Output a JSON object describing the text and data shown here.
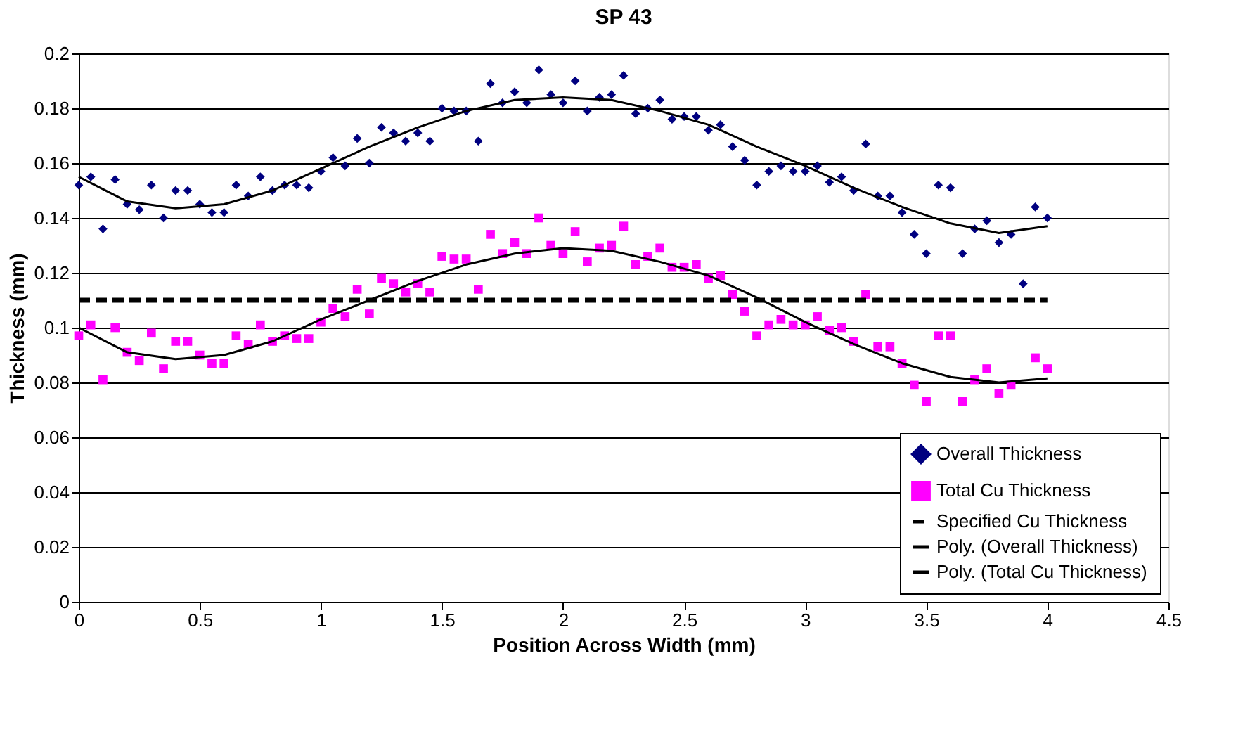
{
  "chart_data": {
    "type": "scatter",
    "title": "SP 43",
    "xlabel": "Position Across Width (mm)",
    "ylabel": "Thickness (mm)",
    "x": [
      0,
      0.05,
      0.1,
      0.15,
      0.2,
      0.25,
      0.3,
      0.35,
      0.4,
      0.45,
      0.5,
      0.55,
      0.6,
      0.65,
      0.7,
      0.75,
      0.8,
      0.85,
      0.9,
      0.95,
      1.0,
      1.05,
      1.1,
      1.15,
      1.2,
      1.25,
      1.3,
      1.35,
      1.4,
      1.45,
      1.5,
      1.55,
      1.6,
      1.65,
      1.7,
      1.75,
      1.8,
      1.85,
      1.9,
      1.95,
      2.0,
      2.05,
      2.1,
      2.15,
      2.2,
      2.25,
      2.3,
      2.35,
      2.4,
      2.45,
      2.5,
      2.55,
      2.6,
      2.65,
      2.7,
      2.75,
      2.8,
      2.85,
      2.9,
      2.95,
      3.0,
      3.05,
      3.1,
      3.15,
      3.2,
      3.25,
      3.3,
      3.35,
      3.4,
      3.45,
      3.5,
      3.55,
      3.6,
      3.65,
      3.7,
      3.75,
      3.8,
      3.85,
      3.9,
      3.95,
      4.0
    ],
    "series": [
      {
        "name": "Overall Thickness",
        "marker": "diamond",
        "color": "#000080",
        "values": [
          0.152,
          0.155,
          0.136,
          0.154,
          0.145,
          0.143,
          0.152,
          0.14,
          0.15,
          0.15,
          0.145,
          0.142,
          0.142,
          0.152,
          0.148,
          0.155,
          0.15,
          0.152,
          0.152,
          0.151,
          0.157,
          0.162,
          0.159,
          0.169,
          0.16,
          0.173,
          0.171,
          0.168,
          0.171,
          0.168,
          0.18,
          0.179,
          0.179,
          0.168,
          0.189,
          0.182,
          0.186,
          0.182,
          0.194,
          0.185,
          0.182,
          0.19,
          0.179,
          0.184,
          0.185,
          0.192,
          0.178,
          0.18,
          0.183,
          0.176,
          0.177,
          0.177,
          0.172,
          0.174,
          0.166,
          0.161,
          0.152,
          0.157,
          0.159,
          0.157,
          0.157,
          0.159,
          0.153,
          0.155,
          0.15,
          0.167,
          0.148,
          0.148,
          0.142,
          0.134,
          0.127,
          0.152,
          0.151,
          0.127,
          0.136,
          0.139,
          0.131,
          0.134,
          0.116,
          0.144,
          0.14
        ]
      },
      {
        "name": "Total Cu Thickness",
        "marker": "square",
        "color": "#ff00ff",
        "values": [
          0.097,
          0.101,
          0.081,
          0.1,
          0.091,
          0.088,
          0.098,
          0.085,
          0.095,
          0.095,
          0.09,
          0.087,
          0.087,
          0.097,
          0.094,
          0.101,
          0.095,
          0.097,
          0.096,
          0.096,
          0.102,
          0.107,
          0.104,
          0.114,
          0.105,
          0.118,
          0.116,
          0.113,
          0.116,
          0.113,
          0.126,
          0.125,
          0.125,
          0.114,
          0.134,
          0.127,
          0.131,
          0.127,
          0.14,
          0.13,
          0.127,
          0.135,
          0.124,
          0.129,
          0.13,
          0.137,
          0.123,
          0.126,
          0.129,
          0.122,
          0.122,
          0.123,
          0.118,
          0.119,
          0.112,
          0.106,
          0.097,
          0.101,
          0.103,
          0.101,
          0.101,
          0.104,
          0.099,
          0.1,
          0.095,
          0.112,
          0.093,
          0.093,
          0.087,
          0.079,
          0.073,
          0.097,
          0.097,
          0.073,
          0.081,
          0.085,
          0.076,
          0.079,
          null,
          0.089,
          0.085
        ]
      },
      {
        "name": "Specified Cu Thickness",
        "type": "line",
        "line_style": "dashed",
        "marker": "none",
        "color": "#000000",
        "x": [
          0,
          4
        ],
        "values": [
          0.11,
          0.11
        ]
      },
      {
        "name": "Poly. (Overall Thickness)",
        "type": "line",
        "line_style": "solid",
        "marker": "none",
        "color": "#000000",
        "x": [
          0,
          0.2,
          0.4,
          0.6,
          0.8,
          1.0,
          1.2,
          1.4,
          1.6,
          1.8,
          2.0,
          2.2,
          2.4,
          2.6,
          2.8,
          3.0,
          3.2,
          3.4,
          3.6,
          3.8,
          4.0
        ],
        "values": [
          0.155,
          0.146,
          0.1435,
          0.145,
          0.15,
          0.158,
          0.166,
          0.173,
          0.179,
          0.183,
          0.184,
          0.183,
          0.179,
          0.174,
          0.166,
          0.159,
          0.151,
          0.144,
          0.138,
          0.1345,
          0.137
        ]
      },
      {
        "name": "Poly. (Total Cu Thickness)",
        "type": "line",
        "line_style": "solid",
        "marker": "none",
        "color": "#000000",
        "x": [
          0,
          0.2,
          0.4,
          0.6,
          0.8,
          1.0,
          1.2,
          1.4,
          1.6,
          1.8,
          2.0,
          2.2,
          2.4,
          2.6,
          2.8,
          3.0,
          3.2,
          3.4,
          3.6,
          3.8,
          4.0
        ],
        "values": [
          0.1,
          0.091,
          0.0885,
          0.09,
          0.095,
          0.103,
          0.11,
          0.117,
          0.123,
          0.127,
          0.129,
          0.128,
          0.124,
          0.119,
          0.111,
          0.102,
          0.094,
          0.087,
          0.082,
          0.08,
          0.0815
        ]
      }
    ],
    "xlim": [
      0,
      4.5
    ],
    "xticks": [
      0,
      0.5,
      1,
      1.5,
      2,
      2.5,
      3,
      3.5,
      4,
      4.5
    ],
    "ylim": [
      0,
      0.2
    ],
    "yticks": [
      0,
      0.02,
      0.04,
      0.06,
      0.08,
      0.1,
      0.12,
      0.14,
      0.16,
      0.18,
      0.2
    ],
    "grid": "y",
    "legend": "bottom right"
  }
}
